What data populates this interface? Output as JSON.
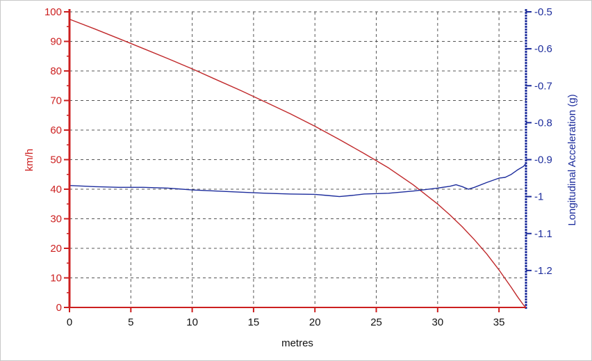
{
  "chart_data": {
    "type": "line",
    "title": "",
    "xlabel": "metres",
    "ylabel_left": "km/h",
    "ylabel_right": "Longitudinal Acceleration (g)",
    "xlim": [
      0,
      37.2
    ],
    "ylim_left": [
      0,
      100
    ],
    "ylim_right": [
      -1.3,
      -0.5
    ],
    "grid": true,
    "legend": "none",
    "x_ticks": [
      "0",
      "5",
      "10",
      "15",
      "20",
      "25",
      "30",
      "35"
    ],
    "x_tick_values": [
      0,
      5,
      10,
      15,
      20,
      25,
      30,
      35
    ],
    "y_left_ticks": [
      "0",
      "10",
      "20",
      "30",
      "40",
      "50",
      "60",
      "70",
      "80",
      "90",
      "100"
    ],
    "y_left_tick_values": [
      0,
      10,
      20,
      30,
      40,
      50,
      60,
      70,
      80,
      90,
      100
    ],
    "y_right_ticks": [
      "-0.5",
      "-0.6",
      "-0.7",
      "-0.8",
      "-0.9",
      "-1",
      "-1.1",
      "-1.2"
    ],
    "y_right_tick_values": [
      -0.5,
      -0.6,
      -0.7,
      -0.8,
      -0.9,
      -1.0,
      -1.1,
      -1.2
    ],
    "series": [
      {
        "axis": "left",
        "color": "#c0282a",
        "x": [
          0,
          2,
          4,
          6,
          8,
          10,
          12,
          14,
          16,
          18,
          20,
          22,
          24,
          26,
          28,
          30,
          31,
          32,
          33,
          34,
          35,
          36,
          36.5,
          37,
          37.2
        ],
        "y": [
          97.5,
          94.3,
          91.0,
          87.6,
          84.2,
          80.7,
          77.0,
          73.3,
          69.4,
          65.5,
          61.3,
          56.8,
          52.1,
          47.2,
          41.5,
          35.0,
          31.3,
          27.3,
          22.9,
          18.1,
          12.7,
          6.8,
          3.7,
          0.8,
          0
        ]
      },
      {
        "axis": "right",
        "color": "#1c2c9c",
        "x": [
          0,
          2,
          4,
          6,
          8,
          10,
          12,
          14,
          16,
          18,
          20,
          21,
          22,
          23,
          24,
          26,
          28,
          30,
          31,
          31.5,
          32,
          32.5,
          33,
          34,
          35,
          35.5,
          36,
          36.5,
          37,
          37.2
        ],
        "y": [
          -0.97,
          -0.973,
          -0.975,
          -0.975,
          -0.977,
          -0.982,
          -0.985,
          -0.988,
          -0.991,
          -0.993,
          -0.994,
          -0.997,
          -1.0,
          -0.997,
          -0.993,
          -0.991,
          -0.985,
          -0.977,
          -0.972,
          -0.968,
          -0.973,
          -0.98,
          -0.975,
          -0.962,
          -0.95,
          -0.948,
          -0.94,
          -0.928,
          -0.918,
          -0.91
        ]
      }
    ]
  }
}
